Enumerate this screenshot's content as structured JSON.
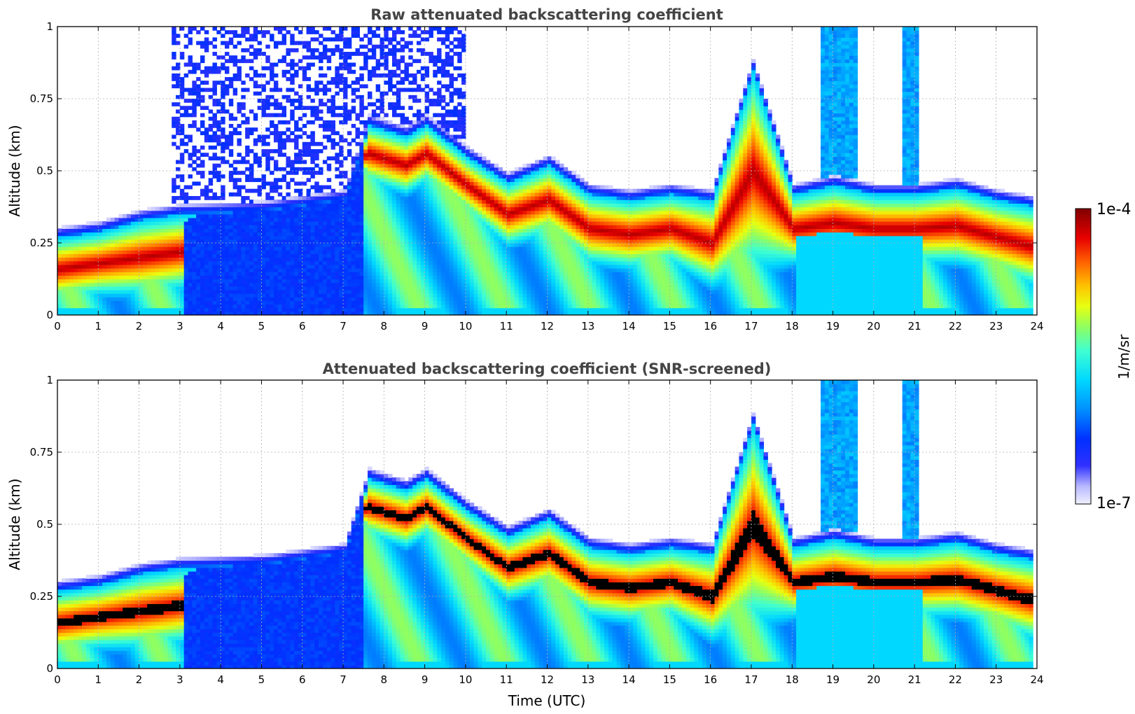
{
  "chart_data": [
    {
      "type": "heatmap",
      "title": "Raw attenuated backscattering coefficient",
      "ylabel": "Altitude (km)",
      "xlabel": "",
      "xlim": [
        0,
        24
      ],
      "ylim": [
        0,
        1
      ],
      "xticks": [
        "0",
        "1",
        "2",
        "3",
        "4",
        "5",
        "6",
        "7",
        "8",
        "9",
        "10",
        "11",
        "12",
        "13",
        "14",
        "15",
        "16",
        "17",
        "18",
        "19",
        "20",
        "21",
        "22",
        "23",
        "24"
      ],
      "yticks": [
        "0",
        "0.25",
        "0.5",
        "0.75",
        "1"
      ],
      "grid": true,
      "layer_top_km": [
        [
          0,
          0.27
        ],
        [
          1,
          0.29
        ],
        [
          2,
          0.33
        ],
        [
          3,
          0.35
        ],
        [
          5,
          0.36
        ],
        [
          7,
          0.4
        ],
        [
          7.6,
          0.66
        ],
        [
          8.5,
          0.62
        ],
        [
          9,
          0.66
        ],
        [
          10,
          0.55
        ],
        [
          11,
          0.46
        ],
        [
          12,
          0.52
        ],
        [
          13,
          0.42
        ],
        [
          14,
          0.4
        ],
        [
          15,
          0.42
        ],
        [
          16,
          0.4
        ],
        [
          17,
          0.85
        ],
        [
          18,
          0.42
        ],
        [
          19,
          0.45
        ],
        [
          20,
          0.42
        ],
        [
          21,
          0.42
        ],
        [
          22,
          0.44
        ],
        [
          23,
          0.4
        ],
        [
          23.8,
          0.38
        ]
      ],
      "layer_peak_km": [
        [
          0,
          0.16
        ],
        [
          1,
          0.18
        ],
        [
          2,
          0.2
        ],
        [
          3,
          0.22
        ],
        [
          7.6,
          0.56
        ],
        [
          8.5,
          0.52
        ],
        [
          9,
          0.56
        ],
        [
          10,
          0.45
        ],
        [
          11,
          0.35
        ],
        [
          12,
          0.4
        ],
        [
          13,
          0.3
        ],
        [
          14,
          0.28
        ],
        [
          15,
          0.3
        ],
        [
          16,
          0.25
        ],
        [
          17,
          0.5
        ],
        [
          18,
          0.3
        ],
        [
          19,
          0.32
        ],
        [
          20,
          0.3
        ],
        [
          21,
          0.3
        ],
        [
          22,
          0.31
        ],
        [
          23,
          0.27
        ],
        [
          23.8,
          0.24
        ]
      ]
    },
    {
      "type": "heatmap",
      "title": "Attenuated backscattering coefficient (SNR-screened)",
      "ylabel": "Altitude (km)",
      "xlabel": "Time (UTC)",
      "xlim": [
        0,
        24
      ],
      "ylim": [
        0,
        1
      ],
      "xticks": [
        "0",
        "1",
        "2",
        "3",
        "4",
        "5",
        "6",
        "7",
        "8",
        "9",
        "10",
        "11",
        "12",
        "13",
        "14",
        "15",
        "16",
        "17",
        "18",
        "19",
        "20",
        "21",
        "22",
        "23",
        "24"
      ],
      "yticks": [
        "0",
        "0.25",
        "0.5",
        "0.75",
        "1"
      ],
      "grid": true
    }
  ],
  "colorbar": {
    "label": "1/m/sr",
    "max_label": "1e-4",
    "min_label": "1e-7",
    "colors": [
      "#e8e8ff",
      "#b0b0ff",
      "#7070ff",
      "#0000ff",
      "#0040ff",
      "#0080ff",
      "#00b0ff",
      "#00e0ff",
      "#40ffd0",
      "#90ff70",
      "#e0ff20",
      "#ffe000",
      "#ffa000",
      "#ff5000",
      "#e00000",
      "#800000"
    ]
  }
}
